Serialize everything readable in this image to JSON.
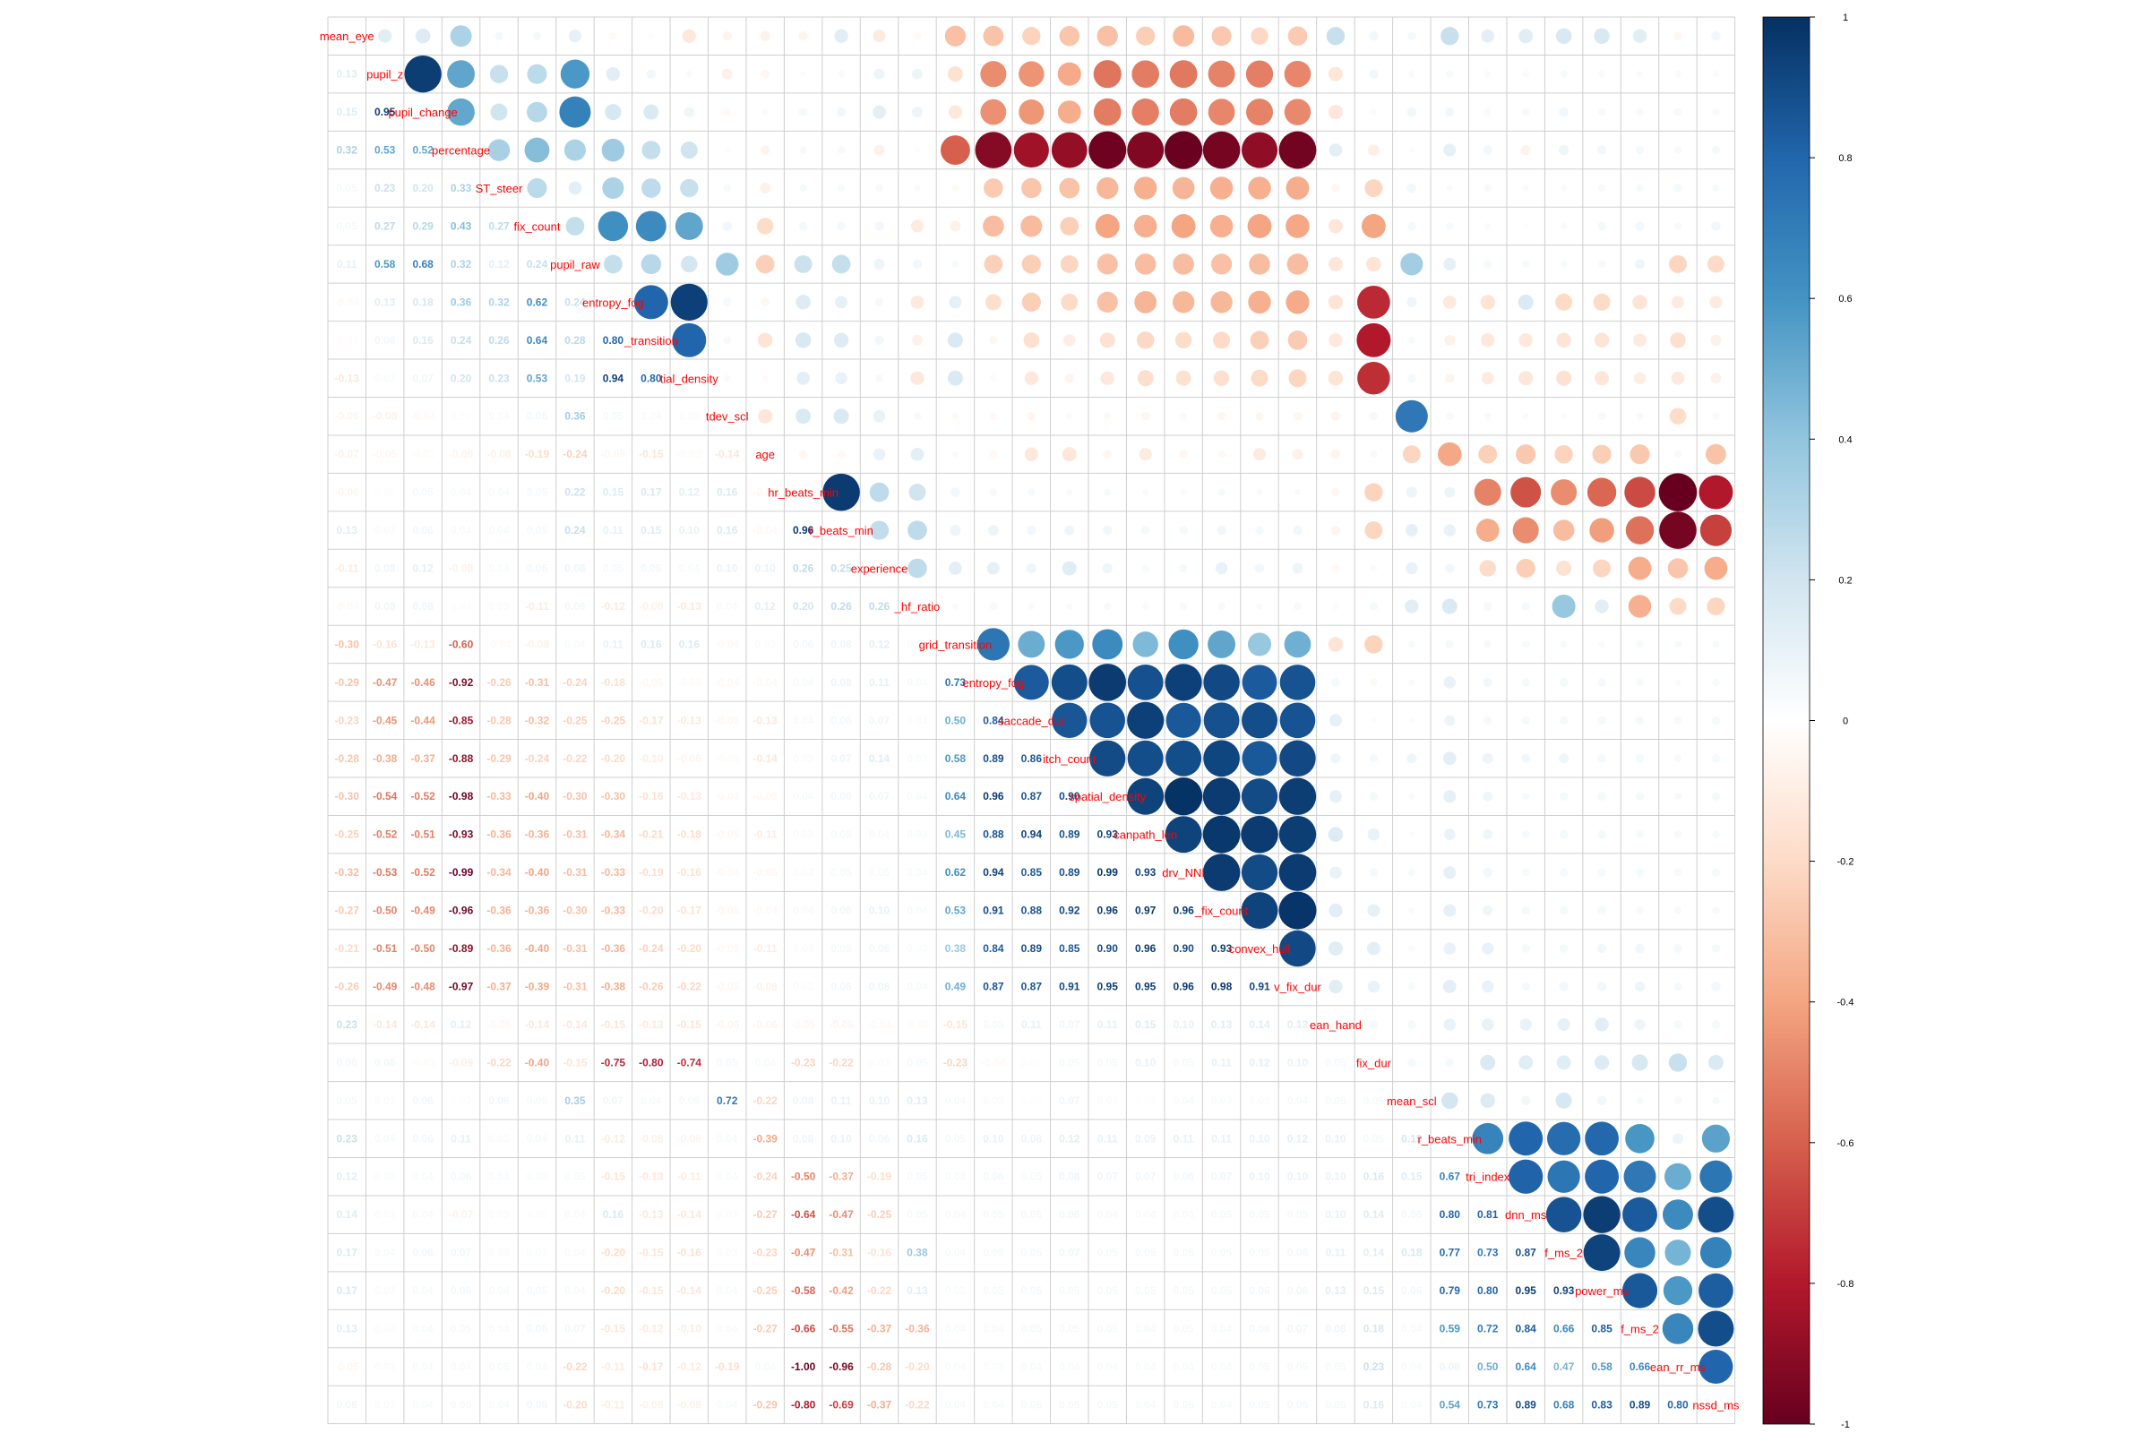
{
  "chart_data": {
    "type": "heatmap",
    "title": "",
    "variables": [
      "mean_eye",
      "pupil_z",
      "pupil_change",
      "percentage",
      "ST_steer",
      "fix_count",
      "pupil_raw",
      "entropy_fog",
      "_transition",
      "tial_density",
      "tdev_scl",
      "age",
      "hr_beats_min",
      "r_beats_min",
      "experience",
      "_hf_ratio",
      "grid_transition",
      "entropy_fog",
      "saccade_dur",
      "itch_count",
      "spatial_density",
      "canpath_len",
      "drv_NNI",
      "_fix_count",
      "convex_hull",
      "v_fix_dur",
      "ean_hand",
      "fix_dur",
      "mean_scl",
      "r_beats_min",
      "tri_index",
      "dnn_ms",
      "f_ms_2",
      "power_ms",
      "f_ms_2",
      "ean_rr_ms",
      "nssd_ms"
    ],
    "layout": "mixed: upper triangle circles, lower triangle coefficients",
    "lower_triangle": [
      [],
      [
        0.13
      ],
      [
        0.15,
        0.95
      ],
      [
        0.32,
        0.53,
        0.52
      ],
      [
        0.05,
        0.23,
        0.2,
        0.33
      ],
      [
        0.05,
        0.27,
        0.29,
        0.43,
        0.27
      ],
      [
        0.11,
        0.58,
        0.68,
        0.32,
        0.12,
        0.24
      ],
      [
        -0.04,
        0.13,
        0.18,
        0.36,
        0.32,
        0.62,
        0.24
      ],
      [
        -0.02,
        0.06,
        0.16,
        0.24,
        0.26,
        0.64,
        0.28,
        0.8
      ],
      [
        -0.13,
        0.03,
        0.07,
        0.2,
        0.23,
        0.53,
        0.19,
        0.94,
        0.8
      ],
      [
        -0.06,
        -0.08,
        -0.04,
        0.02,
        0.04,
        0.06,
        0.36,
        0.05,
        0.04,
        0.03
      ],
      [
        -0.07,
        -0.05,
        -0.03,
        -0.06,
        -0.08,
        -0.19,
        -0.24,
        -0.05,
        -0.15,
        -0.03,
        -0.14
      ],
      [
        -0.06,
        0.02,
        0.05,
        0.04,
        0.04,
        0.05,
        0.22,
        0.15,
        0.17,
        0.12,
        0.16,
        -0.05
      ],
      [
        0.13,
        0.03,
        0.06,
        0.04,
        0.04,
        0.05,
        0.24,
        0.11,
        0.15,
        0.1,
        0.16,
        -0.04,
        0.96
      ],
      [
        -0.11,
        0.08,
        0.12,
        -0.08,
        0.04,
        0.06,
        0.08,
        0.05,
        0.06,
        0.04,
        0.1,
        0.1,
        0.26,
        0.25
      ],
      [
        -0.04,
        0.08,
        0.08,
        0.02,
        0.03,
        -0.11,
        0.06,
        -0.12,
        -0.08,
        -0.13,
        0.04,
        0.12,
        0.2,
        0.26,
        0.26
      ],
      [
        -0.3,
        -0.16,
        -0.13,
        -0.6,
        -0.04,
        -0.08,
        0.04,
        0.11,
        0.16,
        0.16,
        -0.04,
        0.03,
        0.06,
        0.08,
        0.12,
        0.03
      ],
      [
        -0.29,
        -0.47,
        -0.46,
        -0.92,
        -0.26,
        -0.31,
        -0.24,
        -0.18,
        -0.05,
        -0.03,
        -0.04,
        -0.04,
        0.04,
        0.08,
        0.11,
        0.04,
        0.73
      ],
      [
        -0.23,
        -0.45,
        -0.44,
        -0.85,
        -0.28,
        -0.32,
        -0.25,
        -0.25,
        -0.17,
        -0.13,
        -0.05,
        -0.13,
        0.04,
        0.06,
        0.07,
        0.03,
        0.5,
        0.84
      ],
      [
        -0.28,
        -0.38,
        -0.37,
        -0.88,
        -0.29,
        -0.24,
        -0.22,
        -0.2,
        -0.1,
        -0.06,
        -0.03,
        -0.14,
        0.03,
        0.07,
        0.14,
        0.03,
        0.58,
        0.89,
        0.86
      ],
      [
        -0.3,
        -0.54,
        -0.52,
        -0.98,
        -0.33,
        -0.4,
        -0.3,
        -0.3,
        -0.16,
        -0.13,
        -0.04,
        -0.05,
        0.04,
        0.06,
        0.07,
        0.04,
        0.64,
        0.96,
        0.87,
        0.9
      ],
      [
        -0.25,
        -0.52,
        -0.51,
        -0.93,
        -0.36,
        -0.36,
        -0.31,
        -0.34,
        -0.21,
        -0.18,
        -0.05,
        -0.11,
        0.03,
        0.05,
        0.04,
        0.03,
        0.45,
        0.88,
        0.94,
        0.89,
        0.93
      ],
      [
        -0.32,
        -0.53,
        -0.52,
        -0.99,
        -0.34,
        -0.4,
        -0.31,
        -0.33,
        -0.19,
        -0.16,
        -0.04,
        -0.05,
        0.03,
        0.05,
        0.05,
        0.04,
        0.62,
        0.94,
        0.85,
        0.89,
        0.99,
        0.93
      ],
      [
        -0.27,
        -0.5,
        -0.49,
        -0.96,
        -0.36,
        -0.36,
        -0.3,
        -0.33,
        -0.2,
        -0.17,
        -0.05,
        -0.04,
        0.04,
        0.06,
        0.1,
        0.04,
        0.53,
        0.91,
        0.88,
        0.92,
        0.96,
        0.97,
        0.96
      ],
      [
        -0.21,
        -0.51,
        -0.5,
        -0.89,
        -0.36,
        -0.4,
        -0.31,
        -0.36,
        -0.24,
        -0.2,
        -0.05,
        -0.11,
        0.03,
        0.05,
        0.06,
        0.03,
        0.38,
        0.84,
        0.89,
        0.85,
        0.9,
        0.96,
        0.9,
        0.93
      ],
      [
        -0.26,
        -0.49,
        -0.48,
        -0.97,
        -0.37,
        -0.39,
        -0.31,
        -0.38,
        -0.26,
        -0.22,
        -0.05,
        -0.08,
        0.03,
        0.06,
        0.08,
        0.04,
        0.49,
        0.87,
        0.87,
        0.91,
        0.95,
        0.95,
        0.96,
        0.98,
        0.91
      ],
      [
        0.23,
        -0.14,
        -0.14,
        0.12,
        -0.05,
        -0.14,
        -0.14,
        -0.15,
        -0.13,
        -0.15,
        -0.06,
        -0.06,
        -0.05,
        -0.06,
        -0.04,
        -0.03,
        -0.15,
        0.05,
        0.11,
        0.07,
        0.11,
        0.15,
        0.1,
        0.13,
        0.14,
        0.13
      ],
      [
        0.06,
        0.06,
        -0.03,
        -0.09,
        -0.22,
        -0.4,
        -0.15,
        -0.75,
        -0.8,
        -0.74,
        0.05,
        0.04,
        -0.23,
        -0.22,
        0.03,
        0.05,
        -0.23,
        -0.04,
        0.02,
        0.05,
        0.05,
        0.1,
        0.05,
        0.11,
        0.12,
        0.1,
        0.05
      ],
      [
        0.05,
        0.03,
        0.06,
        0.02,
        0.06,
        0.05,
        0.35,
        0.07,
        0.04,
        0.05,
        0.72,
        -0.22,
        0.08,
        0.11,
        0.1,
        0.13,
        0.04,
        0.03,
        0.02,
        0.07,
        0.03,
        0.02,
        0.04,
        0.03,
        0.03,
        0.04,
        0.05,
        0.05
      ],
      [
        0.23,
        0.04,
        0.06,
        0.11,
        0.03,
        0.04,
        0.11,
        -0.12,
        -0.08,
        -0.06,
        0.04,
        -0.39,
        0.08,
        0.1,
        0.06,
        0.16,
        0.05,
        0.1,
        0.08,
        0.12,
        0.11,
        0.09,
        0.11,
        0.11,
        0.1,
        0.12,
        0.1,
        0.05,
        0.19
      ],
      [
        0.12,
        0.03,
        0.04,
        0.06,
        0.04,
        0.03,
        0.05,
        -0.15,
        -0.13,
        -0.11,
        0.04,
        -0.24,
        -0.5,
        -0.37,
        -0.19,
        0.05,
        0.04,
        0.06,
        0.05,
        0.08,
        0.07,
        0.07,
        0.06,
        0.07,
        0.1,
        0.1,
        0.1,
        0.16,
        0.15,
        0.67
      ],
      [
        0.14,
        0.03,
        0.04,
        -0.07,
        0.03,
        0.02,
        0.04,
        0.16,
        -0.13,
        -0.14,
        0.03,
        -0.27,
        -0.64,
        -0.47,
        -0.25,
        0.05,
        0.04,
        0.05,
        0.05,
        0.06,
        0.04,
        0.04,
        0.04,
        0.05,
        0.05,
        0.05,
        0.1,
        0.14,
        0.06,
        0.8,
        0.81
      ],
      [
        0.17,
        0.04,
        0.06,
        0.07,
        0.03,
        0.03,
        0.04,
        -0.2,
        -0.15,
        -0.16,
        0.03,
        -0.23,
        -0.47,
        -0.31,
        -0.16,
        0.38,
        0.04,
        0.05,
        0.05,
        0.07,
        0.05,
        0.05,
        0.05,
        0.05,
        0.05,
        0.06,
        0.11,
        0.14,
        0.18,
        0.77,
        0.73,
        0.87
      ],
      [
        0.17,
        0.03,
        0.04,
        0.06,
        0.04,
        0.05,
        0.04,
        -0.2,
        -0.15,
        -0.14,
        0.04,
        -0.25,
        -0.58,
        -0.42,
        -0.22,
        0.13,
        0.03,
        0.05,
        0.05,
        0.05,
        0.05,
        0.05,
        0.05,
        0.05,
        0.06,
        0.06,
        0.13,
        0.15,
        0.06,
        0.79,
        0.8,
        0.95,
        0.93
      ],
      [
        0.13,
        0.03,
        0.04,
        0.05,
        0.04,
        0.06,
        0.07,
        -0.15,
        -0.12,
        -0.1,
        0.04,
        -0.27,
        -0.66,
        -0.55,
        -0.37,
        -0.36,
        0.04,
        0.04,
        0.05,
        0.05,
        0.05,
        0.04,
        0.05,
        0.04,
        0.06,
        0.07,
        0.08,
        0.18,
        0.04,
        0.59,
        0.72,
        0.84,
        0.66,
        0.85
      ],
      [
        -0.05,
        0.03,
        0.04,
        0.04,
        0.05,
        0.04,
        -0.22,
        -0.11,
        -0.17,
        -0.12,
        -0.19,
        0.04,
        -1.0,
        -0.96,
        -0.28,
        -0.2,
        0.04,
        0.03,
        0.04,
        0.04,
        0.04,
        0.04,
        0.04,
        0.04,
        0.05,
        0.05,
        0.05,
        0.23,
        0.04,
        0.08,
        0.5,
        0.64,
        0.47,
        0.58,
        0.66
      ],
      [
        0.06,
        0.03,
        0.04,
        0.05,
        0.04,
        0.06,
        -0.2,
        -0.11,
        -0.08,
        -0.08,
        0.04,
        -0.29,
        -0.8,
        -0.69,
        -0.37,
        -0.22,
        0.04,
        0.04,
        0.05,
        0.05,
        0.05,
        0.04,
        0.05,
        0.04,
        0.05,
        0.06,
        0.05,
        0.16,
        0.04,
        0.54,
        0.73,
        0.89,
        0.68,
        0.83,
        0.89,
        0.8
      ]
    ],
    "colorbar": {
      "ticks": [
        "1",
        "0.8",
        "0.6",
        "0.4",
        "0.2",
        "0",
        "-0.2",
        "-0.4",
        "-0.6",
        "-0.8",
        "-1"
      ],
      "range": [
        -1,
        1
      ]
    },
    "legend_position": "right"
  }
}
